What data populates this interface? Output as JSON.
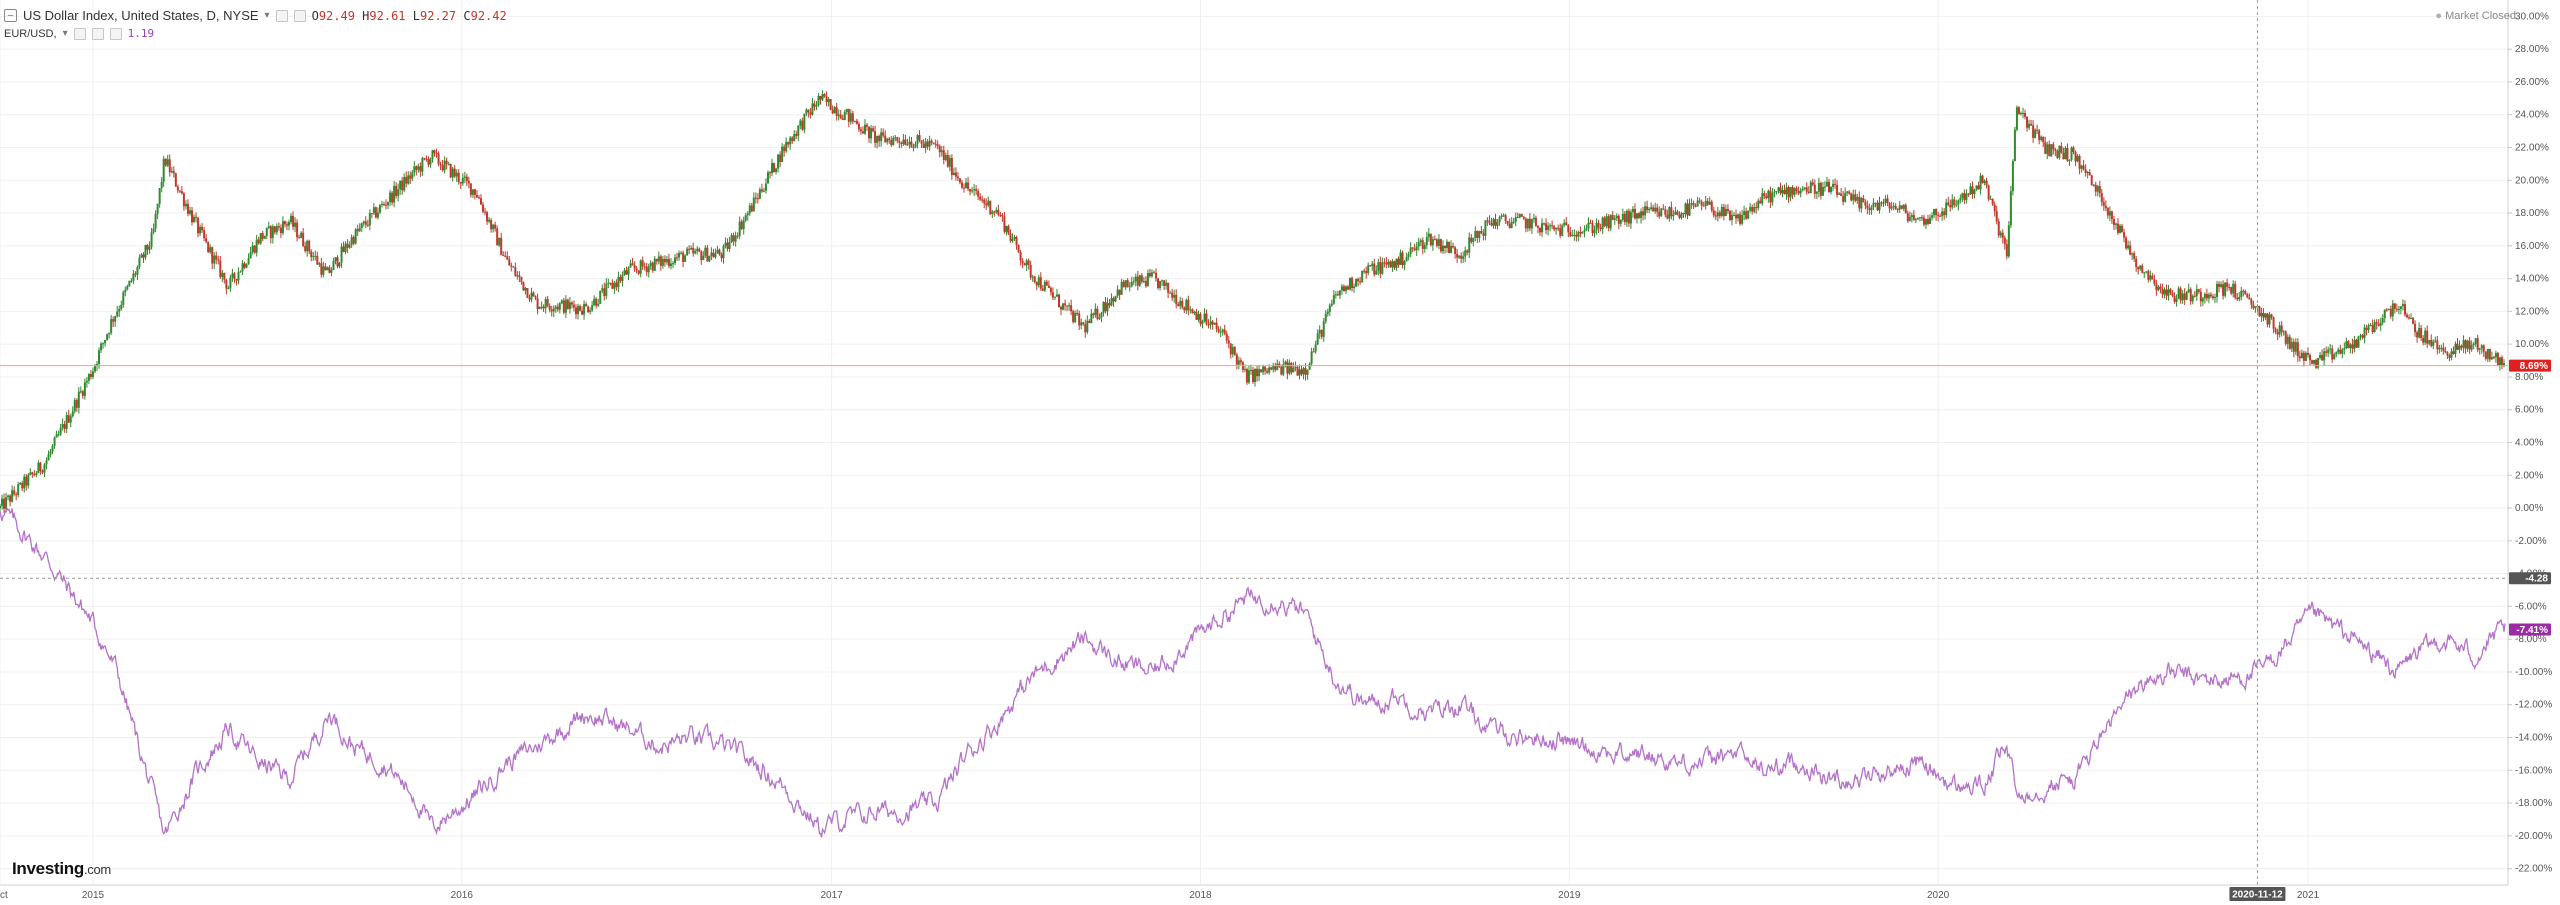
{
  "legend": {
    "primary_title": "US Dollar Index, United States, D, NYSE",
    "ohlc": [
      {
        "k": "O",
        "v": "92.49"
      },
      {
        "k": "H",
        "v": "92.61"
      },
      {
        "k": "L",
        "v": "92.27"
      },
      {
        "k": "C",
        "v": "92.42"
      }
    ],
    "secondary_title": "EUR/USD,",
    "secondary_value": "1.19"
  },
  "market_status": "Market Closed",
  "logo": {
    "main": "Investing",
    "suffix": ".com"
  },
  "colors": {
    "up": "#2e8b2e",
    "down": "#c0392b",
    "compare": "#b472c8",
    "last_price_line": "#f0a58a",
    "last_price_badge": "#e02020",
    "compare_badge": "#9b2aa5",
    "crosshair_badge": "#555555",
    "grid": "#f0f0f0"
  },
  "chart_data": {
    "type": "line",
    "title": "US Dollar Index, United States, D, NYSE",
    "xlabel": "",
    "ylabel": "",
    "x_range": [
      "2014-10-01",
      "2021-07-15"
    ],
    "ylim": [
      -23,
      31
    ],
    "y_ticks": [
      "30.00%",
      "28.00%",
      "26.00%",
      "24.00%",
      "22.00%",
      "20.00%",
      "18.00%",
      "16.00%",
      "14.00%",
      "12.00%",
      "10.00%",
      "8.00%",
      "6.00%",
      "4.00%",
      "2.00%",
      "0.00%",
      "-2.00%",
      "-4.00%",
      "-6.00%",
      "-8.00%",
      "-10.00%",
      "-12.00%",
      "-14.00%",
      "-16.00%",
      "-18.00%",
      "-20.00%",
      "-22.00%"
    ],
    "x_ticks": [
      {
        "label": "Oct",
        "date": "2014-10-01"
      },
      {
        "label": "2015",
        "date": "2015-01-01"
      },
      {
        "label": "2016",
        "date": "2016-01-01"
      },
      {
        "label": "2017",
        "date": "2017-01-01"
      },
      {
        "label": "2018",
        "date": "2018-01-01"
      },
      {
        "label": "2019",
        "date": "2019-01-01"
      },
      {
        "label": "2020",
        "date": "2020-01-01"
      },
      {
        "label": "2021",
        "date": "2021-01-01"
      }
    ],
    "grid": true,
    "last_value_label": "8.69%",
    "compare_last_value_label": "-7.41%",
    "crosshair": {
      "date_label": "2020-11-12",
      "date": "2020-11-12",
      "value_label": "-4.28",
      "value": -4.28
    },
    "series": [
      {
        "name": "US Dollar Index",
        "style": "candles",
        "x": [
          "2014-10-01",
          "2014-11-15",
          "2015-01-01",
          "2015-01-20",
          "2015-03-01",
          "2015-03-13",
          "2015-04-15",
          "2015-05-15",
          "2015-06-15",
          "2015-07-15",
          "2015-08-20",
          "2015-09-15",
          "2015-10-15",
          "2015-11-15",
          "2015-12-02",
          "2016-01-15",
          "2016-02-15",
          "2016-03-15",
          "2016-05-03",
          "2016-06-15",
          "2016-07-15",
          "2016-08-15",
          "2016-09-15",
          "2016-10-15",
          "2016-11-15",
          "2016-12-20",
          "2017-01-15",
          "2017-02-15",
          "2017-03-15",
          "2017-04-15",
          "2017-05-15",
          "2017-06-15",
          "2017-07-15",
          "2017-08-15",
          "2017-09-08",
          "2017-10-15",
          "2017-11-15",
          "2017-12-15",
          "2018-01-25",
          "2018-02-15",
          "2018-03-15",
          "2018-04-15",
          "2018-05-15",
          "2018-06-15",
          "2018-07-15",
          "2018-08-15",
          "2018-09-15",
          "2018-10-15",
          "2018-11-15",
          "2018-12-15",
          "2019-01-15",
          "2019-02-15",
          "2019-03-15",
          "2019-04-15",
          "2019-05-15",
          "2019-06-15",
          "2019-07-15",
          "2019-08-15",
          "2019-09-15",
          "2019-10-15",
          "2019-11-15",
          "2019-12-15",
          "2020-01-15",
          "2020-02-15",
          "2020-03-09",
          "2020-03-19",
          "2020-04-15",
          "2020-05-15",
          "2020-06-15",
          "2020-07-15",
          "2020-08-15",
          "2020-09-15",
          "2020-10-15",
          "2020-11-15",
          "2020-12-15",
          "2021-01-06",
          "2021-02-15",
          "2021-03-31",
          "2021-04-15",
          "2021-05-15",
          "2021-06-15",
          "2021-07-15"
        ],
        "y": [
          0.0,
          2.8,
          8.5,
          11.5,
          16.5,
          21.3,
          17.0,
          13.5,
          16.5,
          17.5,
          14.2,
          16.5,
          18.5,
          20.5,
          21.5,
          19.3,
          15.0,
          12.5,
          12.2,
          14.5,
          15.0,
          15.5,
          15.5,
          18.5,
          22.0,
          25.0,
          24.0,
          22.5,
          22.5,
          22.0,
          19.5,
          18.0,
          14.5,
          12.5,
          11.0,
          13.5,
          14.0,
          12.5,
          10.5,
          8.0,
          8.5,
          8.5,
          13.0,
          14.5,
          15.0,
          16.5,
          15.5,
          17.5,
          17.5,
          17.0,
          17.0,
          17.5,
          18.0,
          18.0,
          18.5,
          17.5,
          19.0,
          19.5,
          19.5,
          18.5,
          18.5,
          17.5,
          18.5,
          20.0,
          15.5,
          24.5,
          22.0,
          21.5,
          18.5,
          15.0,
          13.0,
          13.0,
          13.5,
          12.0,
          10.0,
          8.8,
          10.0,
          12.5,
          11.0,
          9.5,
          10.0,
          8.69
        ]
      },
      {
        "name": "EUR/USD",
        "style": "line",
        "x": [
          "2014-10-01",
          "2014-11-15",
          "2015-01-01",
          "2015-01-25",
          "2015-03-13",
          "2015-04-15",
          "2015-05-15",
          "2015-06-15",
          "2015-07-15",
          "2015-08-24",
          "2015-09-15",
          "2015-10-15",
          "2015-11-15",
          "2015-12-02",
          "2016-01-15",
          "2016-02-15",
          "2016-03-15",
          "2016-05-03",
          "2016-06-15",
          "2016-07-15",
          "2016-08-15",
          "2016-09-15",
          "2016-10-15",
          "2016-11-15",
          "2016-12-20",
          "2017-01-15",
          "2017-02-15",
          "2017-03-15",
          "2017-04-15",
          "2017-05-15",
          "2017-06-15",
          "2017-07-15",
          "2017-08-15",
          "2017-09-08",
          "2017-10-15",
          "2017-11-15",
          "2017-12-15",
          "2018-01-25",
          "2018-02-15",
          "2018-03-15",
          "2018-04-15",
          "2018-05-15",
          "2018-06-15",
          "2018-07-15",
          "2018-08-15",
          "2018-09-15",
          "2018-10-15",
          "2018-11-15",
          "2018-12-15",
          "2019-01-15",
          "2019-02-15",
          "2019-03-15",
          "2019-04-15",
          "2019-05-15",
          "2019-06-15",
          "2019-07-15",
          "2019-08-15",
          "2019-09-15",
          "2019-10-15",
          "2019-11-15",
          "2019-12-15",
          "2020-01-15",
          "2020-02-15",
          "2020-03-09",
          "2020-03-19",
          "2020-04-15",
          "2020-05-15",
          "2020-06-15",
          "2020-07-15",
          "2020-08-15",
          "2020-09-15",
          "2020-10-15",
          "2020-11-15",
          "2020-12-15",
          "2021-01-06",
          "2021-02-15",
          "2021-03-31",
          "2021-04-15",
          "2021-05-15",
          "2021-06-15",
          "2021-07-15"
        ],
        "y": [
          0.0,
          -3.0,
          -7.0,
          -10.0,
          -20.0,
          -16.0,
          -13.5,
          -15.5,
          -16.5,
          -12.5,
          -14.5,
          -15.5,
          -17.5,
          -19.5,
          -17.5,
          -15.5,
          -14.5,
          -12.5,
          -13.5,
          -14.5,
          -14.0,
          -14.5,
          -15.5,
          -17.0,
          -19.5,
          -19.0,
          -18.5,
          -18.5,
          -18.0,
          -15.0,
          -13.0,
          -10.5,
          -9.0,
          -8.0,
          -9.5,
          -10.0,
          -8.5,
          -6.5,
          -5.5,
          -5.5,
          -6.5,
          -10.5,
          -12.0,
          -11.5,
          -12.5,
          -12.0,
          -13.5,
          -14.0,
          -14.0,
          -14.5,
          -15.0,
          -15.0,
          -15.5,
          -15.5,
          -15.0,
          -16.0,
          -15.5,
          -16.5,
          -16.5,
          -16.0,
          -15.5,
          -17.0,
          -17.0,
          -14.5,
          -17.5,
          -17.0,
          -16.5,
          -13.5,
          -11.0,
          -10.0,
          -10.5,
          -10.5,
          -10.0,
          -8.0,
          -6.5,
          -8.0,
          -10.0,
          -9.0,
          -8.0,
          -9.0,
          -7.41
        ]
      }
    ]
  }
}
